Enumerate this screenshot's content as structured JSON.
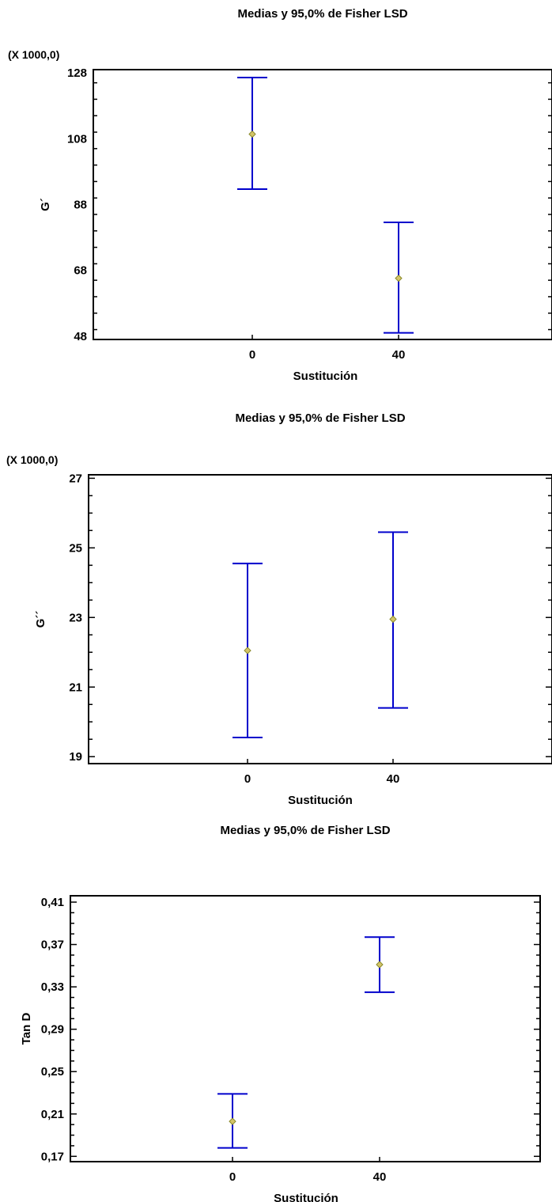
{
  "chart_data": [
    {
      "type": "errorbar",
      "title": "Medias y 95,0% de Fisher LSD",
      "xlabel": "Sustitución",
      "ylabel": "G´",
      "scale_note": "(X 1000,0)",
      "categories": [
        "0",
        "40"
      ],
      "ylim": [
        47,
        129
      ],
      "yticks": [
        48,
        68,
        88,
        108,
        128
      ],
      "yticklabels": [
        "48",
        "68",
        "88",
        "108",
        "128"
      ],
      "minor_step": 5,
      "series": [
        {
          "values": [
            109.4,
            65.6
          ],
          "lower": [
            92.7,
            49.0
          ],
          "upper": [
            126.6,
            82.6
          ]
        }
      ],
      "grid": false
    },
    {
      "type": "errorbar",
      "title": "Medias y 95,0% de Fisher LSD",
      "xlabel": "Sustitución",
      "ylabel": "G´´",
      "scale_note": "(X 1000,0)",
      "categories": [
        "0",
        "40"
      ],
      "ylim": [
        18.8,
        27.1
      ],
      "yticks": [
        19,
        21,
        23,
        25,
        27
      ],
      "yticklabels": [
        "19",
        "21",
        "23",
        "25",
        "27"
      ],
      "minor_step": 0.5,
      "series": [
        {
          "values": [
            22.05,
            22.95
          ],
          "lower": [
            19.55,
            20.4
          ],
          "upper": [
            24.55,
            25.45
          ]
        }
      ],
      "grid": false
    },
    {
      "type": "errorbar",
      "title": "Medias y 95,0% de Fisher LSD",
      "xlabel": "Sustitución",
      "ylabel": "Tan D",
      "scale_note": "",
      "categories": [
        "0",
        "40"
      ],
      "ylim": [
        0.165,
        0.416
      ],
      "yticks": [
        0.17,
        0.21,
        0.25,
        0.29,
        0.33,
        0.37,
        0.41
      ],
      "yticklabels": [
        "0,17",
        "0,21",
        "0,25",
        "0,29",
        "0,33",
        "0,37",
        "0,41"
      ],
      "minor_step": 0.01,
      "series": [
        {
          "values": [
            0.203,
            0.351
          ],
          "lower": [
            0.178,
            0.325
          ],
          "upper": [
            0.229,
            0.377
          ]
        }
      ],
      "grid": false
    }
  ],
  "colors": {
    "errorbar": "#0000cc",
    "marker": "#8a8a2a",
    "axis": "#000000"
  }
}
